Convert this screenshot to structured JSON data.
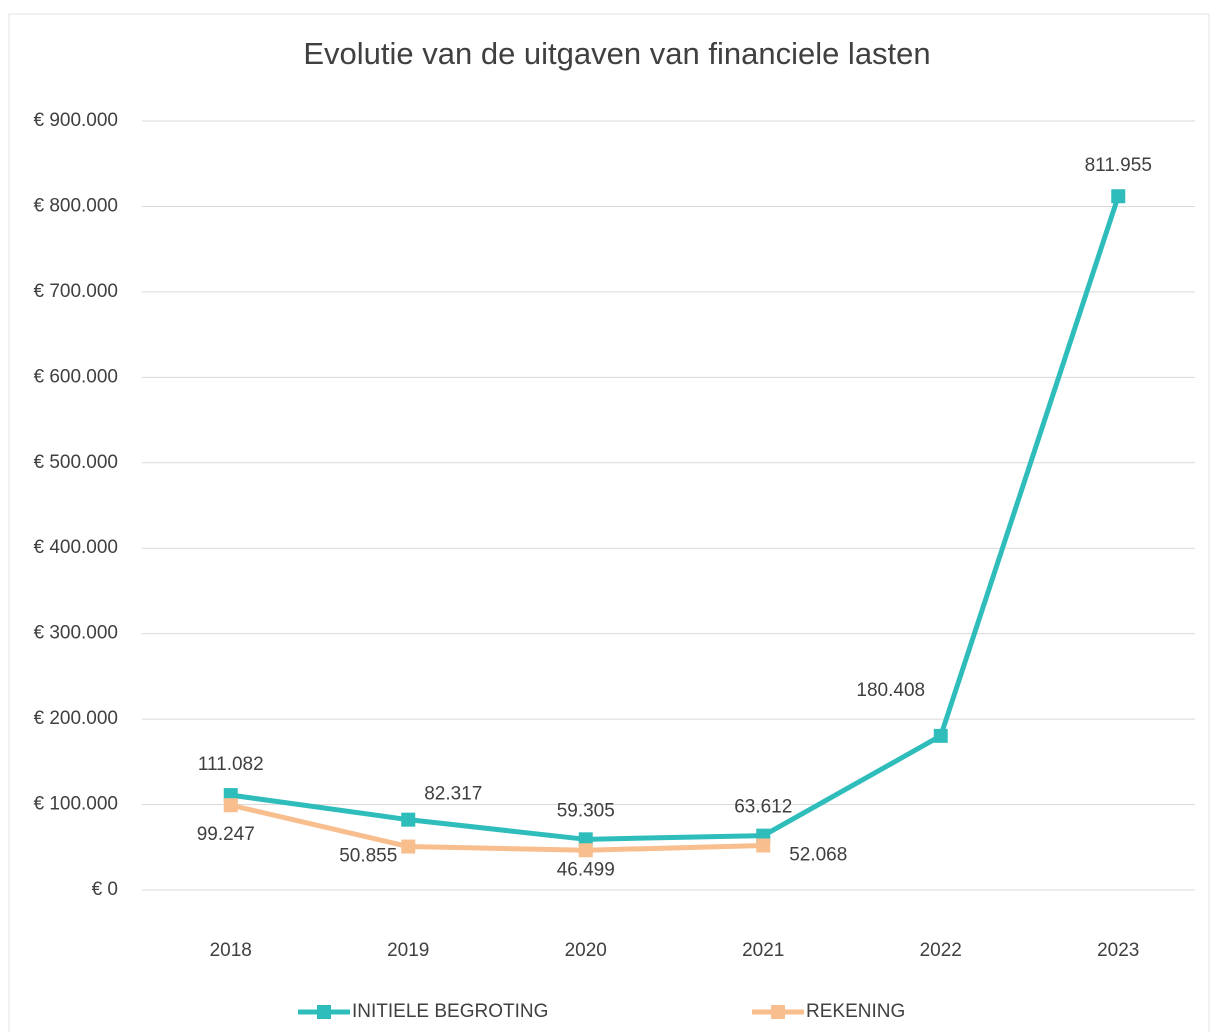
{
  "chart_data": {
    "type": "line",
    "title": "Evolutie van de uitgaven van financiele lasten",
    "categories": [
      "2018",
      "2019",
      "2020",
      "2021",
      "2022",
      "2023"
    ],
    "series": [
      {
        "name": "INITIELE BEGROTING",
        "color": "#2fbdbc",
        "values": [
          111082,
          82317,
          59305,
          63612,
          180408,
          811955
        ],
        "value_labels": [
          "111.082",
          "82.317",
          "59.305",
          "63.612",
          "180.408",
          "811.955"
        ]
      },
      {
        "name": "REKENING",
        "color": "#f8be8e",
        "values": [
          99247,
          50855,
          46499,
          52068,
          null,
          null
        ],
        "value_labels": [
          "99.247",
          "50.855",
          "46.499",
          "52.068",
          null,
          null
        ]
      }
    ],
    "ylim": [
      0,
      900000
    ],
    "yticks": [
      {
        "value": 0,
        "label": "€ 0"
      },
      {
        "value": 100000,
        "label": "€ 100.000"
      },
      {
        "value": 200000,
        "label": "€ 200.000"
      },
      {
        "value": 300000,
        "label": "€ 300.000"
      },
      {
        "value": 400000,
        "label": "€ 400.000"
      },
      {
        "value": 500000,
        "label": "€ 500.000"
      },
      {
        "value": 600000,
        "label": "€ 600.000"
      },
      {
        "value": 700000,
        "label": "€ 700.000"
      },
      {
        "value": 800000,
        "label": "€ 800.000"
      },
      {
        "value": 900000,
        "label": "€ 900.000"
      }
    ],
    "grid": true,
    "legend": "bottom"
  }
}
